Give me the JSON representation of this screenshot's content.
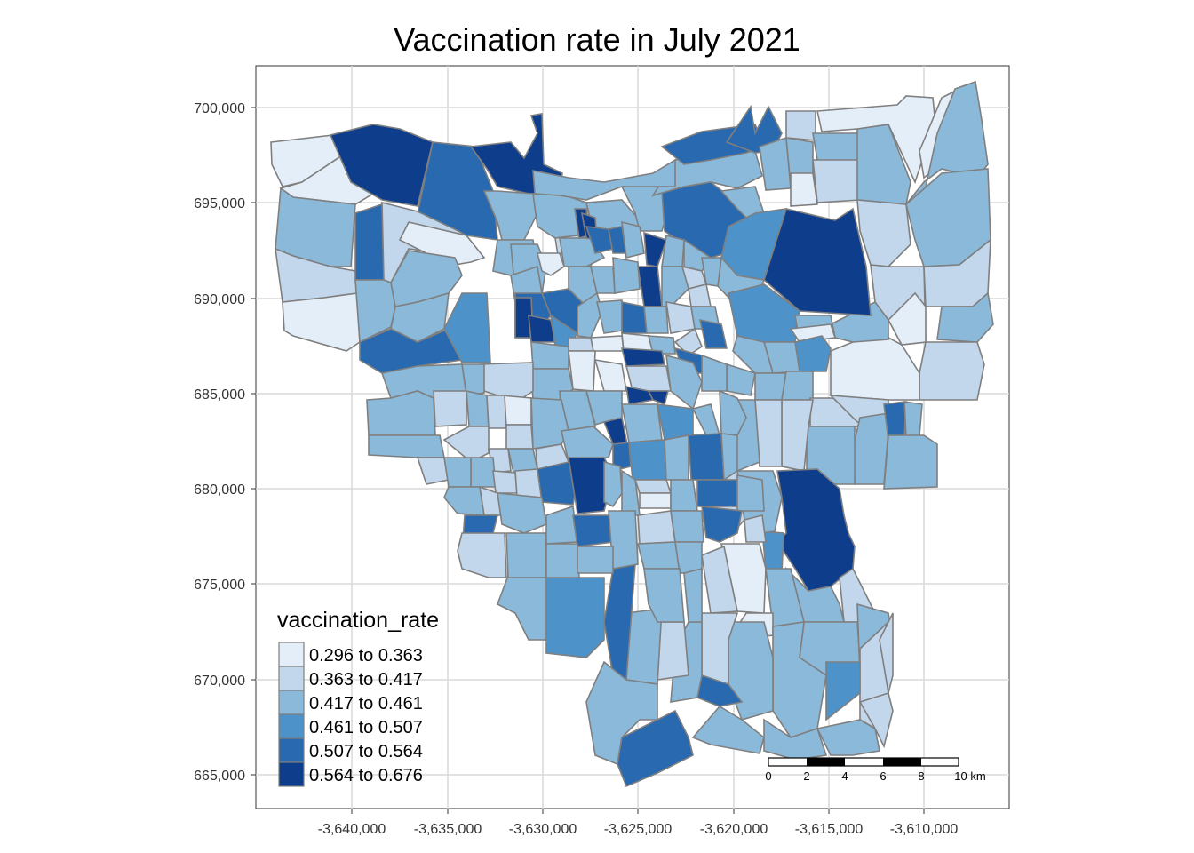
{
  "title": "Vaccination rate in July 2021",
  "map": {
    "y_ticks": [
      "700,000",
      "695,000",
      "690,000",
      "685,000",
      "680,000",
      "675,000",
      "670,000",
      "665,000"
    ],
    "x_ticks": [
      "-3,640,000",
      "-3,635,000",
      "-3,630,000",
      "-3,625,000",
      "-3,620,000",
      "-3,615,000",
      "-3,610,000"
    ],
    "grid": true
  },
  "legend": {
    "title": "vaccination_rate",
    "placement": "bottom-left",
    "classes": [
      {
        "label": "0.296 to 0.363",
        "color": "#e4eef8"
      },
      {
        "label": "0.363 to 0.417",
        "color": "#c2d6ec"
      },
      {
        "label": "0.417 to 0.461",
        "color": "#8ab9da"
      },
      {
        "label": "0.461 to 0.507",
        "color": "#4d92c9"
      },
      {
        "label": "0.507 to 0.564",
        "color": "#2869af"
      },
      {
        "label": "0.564 to 0.676",
        "color": "#0e3e8b"
      }
    ]
  },
  "scale_bar": {
    "labels": [
      "0",
      "2",
      "4",
      "6",
      "8",
      "10 km"
    ]
  },
  "colors": {
    "border": "#7f7f7f",
    "grid": "#d9d9d9",
    "frame": "#333333"
  }
}
